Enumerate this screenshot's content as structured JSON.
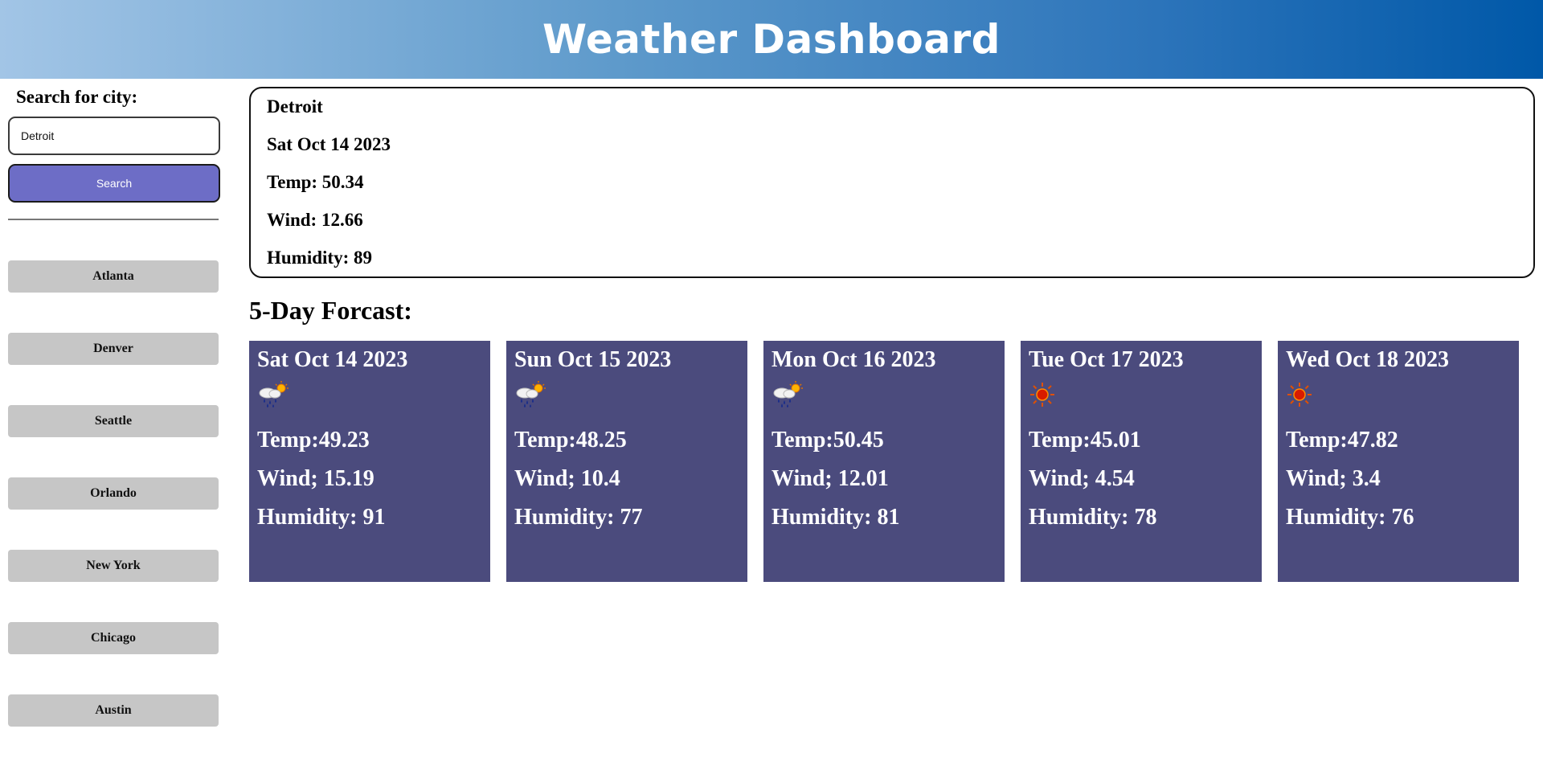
{
  "header": {
    "title": "Weather Dashboard"
  },
  "search": {
    "label": "Search for city:",
    "value": "Detroit",
    "button_label": "Search"
  },
  "history": [
    "Atlanta",
    "Denver",
    "Seattle",
    "Orlando",
    "New York",
    "Chicago",
    "Austin"
  ],
  "current": {
    "city": "Detroit",
    "date": "Sat Oct 14 2023",
    "temp": "Temp: 50.34",
    "wind": "Wind: 12.66",
    "humidity": "Humidity: 89"
  },
  "forecast": {
    "title": "5-Day Forcast:",
    "days": [
      {
        "date": "Sat Oct 14 2023",
        "icon": "rain-sun-icon",
        "temp": "Temp:49.23",
        "wind": "Wind; 15.19",
        "humidity": "Humidity: 91"
      },
      {
        "date": "Sun Oct 15 2023",
        "icon": "rain-sun-icon",
        "temp": "Temp:48.25",
        "wind": "Wind; 10.4",
        "humidity": "Humidity: 77"
      },
      {
        "date": "Mon Oct 16 2023",
        "icon": "rain-sun-icon",
        "temp": "Temp:50.45",
        "wind": "Wind; 12.01",
        "humidity": "Humidity: 81"
      },
      {
        "date": "Tue Oct 17 2023",
        "icon": "sun-icon",
        "temp": "Temp:45.01",
        "wind": "Wind; 4.54",
        "humidity": "Humidity: 78"
      },
      {
        "date": "Wed Oct 18 2023",
        "icon": "sun-icon",
        "temp": "Temp:47.82",
        "wind": "Wind; 3.4",
        "humidity": "Humidity: 76"
      }
    ]
  },
  "colors": {
    "header_start": "#a2c5e6",
    "header_end": "#0058a8",
    "search_button": "#6d6dc6",
    "city_button": "#c6c6c6",
    "card_bg": "#4b4b7d"
  }
}
